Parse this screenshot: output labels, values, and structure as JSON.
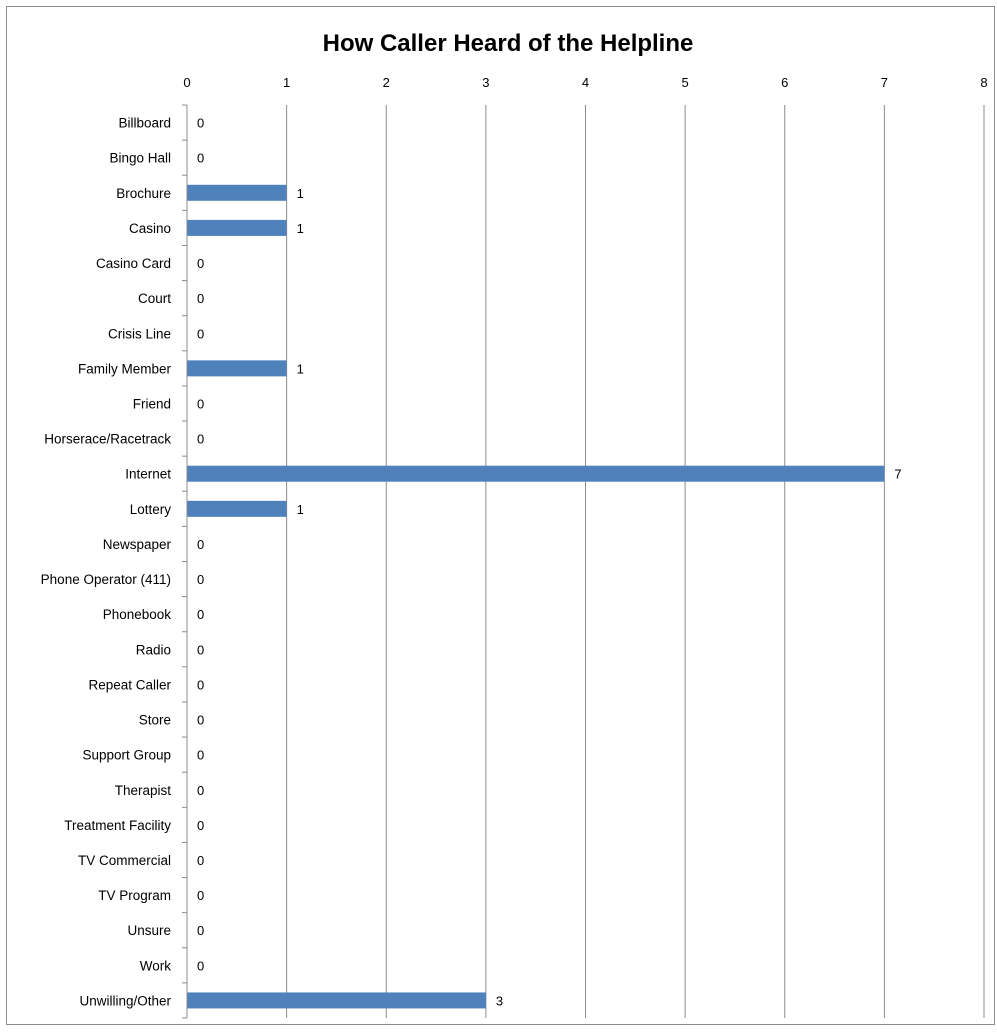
{
  "chart_data": {
    "type": "bar",
    "orientation": "horizontal",
    "title": "How Caller Heard of the Helpline",
    "xlabel": "",
    "ylabel": "",
    "xlim": [
      0,
      8
    ],
    "x_ticks": [
      "0",
      "1",
      "2",
      "3",
      "4",
      "5",
      "6",
      "7",
      "8"
    ],
    "x_axis_position": "top",
    "grid": true,
    "legend": "none",
    "bar_color": "#4f81bd",
    "categories": [
      "Billboard",
      "Bingo Hall",
      "Brochure",
      "Casino",
      "Casino Card",
      "Court",
      "Crisis Line",
      "Family Member",
      "Friend",
      "Horserace/Racetrack",
      "Internet",
      "Lottery",
      "Newspaper",
      "Phone Operator (411)",
      "Phonebook",
      "Radio",
      "Repeat Caller",
      "Store",
      "Support Group",
      "Therapist",
      "Treatment Facility",
      "TV Commercial",
      "TV Program",
      "Unsure",
      "Work",
      "Unwilling/Other"
    ],
    "values": [
      0,
      0,
      1,
      1,
      0,
      0,
      0,
      1,
      0,
      0,
      7,
      1,
      0,
      0,
      0,
      0,
      0,
      0,
      0,
      0,
      0,
      0,
      0,
      0,
      0,
      3
    ],
    "data_labels": [
      "0",
      "0",
      "1",
      "1",
      "0",
      "0",
      "0",
      "1",
      "0",
      "0",
      "7",
      "1",
      "0",
      "0",
      "0",
      "0",
      "0",
      "0",
      "0",
      "0",
      "0",
      "0",
      "0",
      "0",
      "0",
      "3"
    ]
  }
}
